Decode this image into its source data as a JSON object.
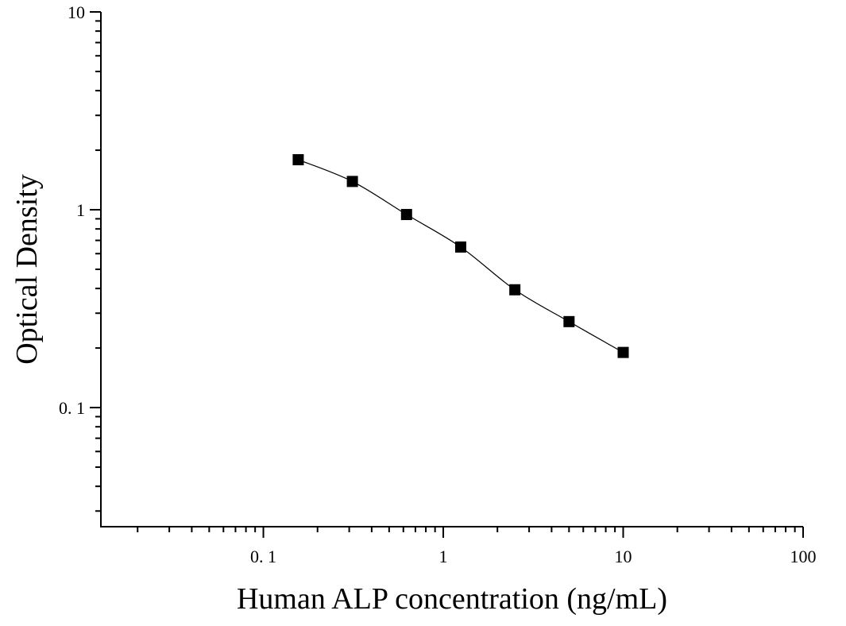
{
  "chart_data": {
    "type": "scatter",
    "x_label": "Human ALP concentration (ng/mL)",
    "y_label": "Optical Density",
    "x": [
      0.15625,
      0.3125,
      0.625,
      1.25,
      2.5,
      5,
      10
    ],
    "values": [
      1.79,
      1.39,
      0.946,
      0.648,
      0.394,
      0.272,
      0.19
    ],
    "color": "#000000",
    "fit_line": true,
    "xlog": true,
    "ylog": true,
    "xlim": [
      0.0125,
      100
    ],
    "ylim": [
      0.025,
      10
    ],
    "xticks": [
      {
        "value": 0.1,
        "label": "0. 1"
      },
      1,
      10,
      100
    ],
    "yticks": [
      {
        "value": 0.1,
        "label": "0. 1"
      },
      1,
      10
    ],
    "minor_ticks": true
  }
}
